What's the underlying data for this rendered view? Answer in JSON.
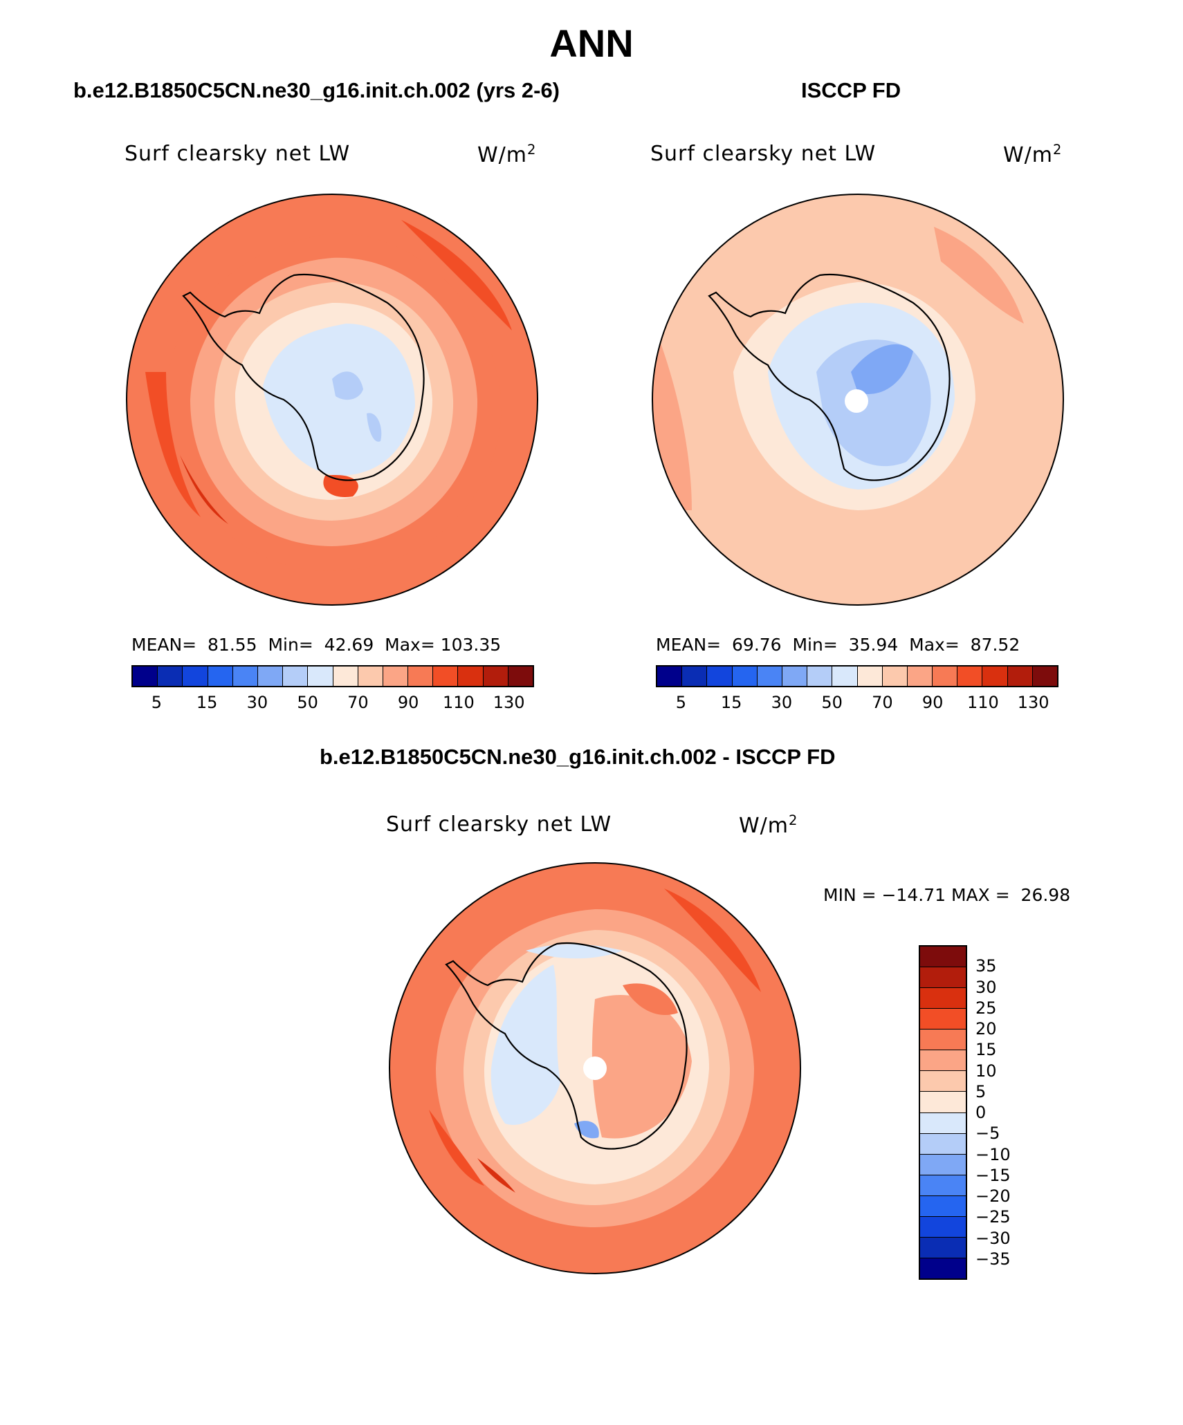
{
  "figure": {
    "title": "ANN",
    "panel_model_header": "b.e12.B1850C5CN.ne30_g16.init.ch.002 (yrs 2-6)",
    "panel_obs_header": "ISCCP FD",
    "panel_diff_header": "b.e12.B1850C5CN.ne30_g16.init.ch.002 - ISCCP FD"
  },
  "panels": {
    "model": {
      "variable": "Surf clearsky net LW",
      "units": "W/m",
      "units_sup": "2",
      "stats": "MEAN=  81.55  Min=  42.69  Max= 103.35"
    },
    "obs": {
      "variable": "Surf clearsky net LW",
      "units": "W/m",
      "units_sup": "2",
      "stats": "MEAN=  69.76  Min=  35.94  Max=  87.52"
    },
    "diff": {
      "variable": "Surf clearsky net LW",
      "units": "W/m",
      "units_sup": "2",
      "stats": "MIN = −14.71 MAX =  26.98"
    }
  },
  "colorbar_abs": {
    "colors": [
      "#00008b",
      "#0a2db4",
      "#1245dd",
      "#2565f0",
      "#4a84f5",
      "#7fa8f5",
      "#b4cdf8",
      "#d9e8fb",
      "#fde8d8",
      "#fcc9ad",
      "#fba586",
      "#f77a55",
      "#f24e26",
      "#d9300f",
      "#b21d0c",
      "#7d0c0c"
    ],
    "ticks": [
      "5",
      "15",
      "30",
      "50",
      "70",
      "90",
      "110",
      "130"
    ]
  },
  "colorbar_diff": {
    "colors": [
      "#7d0c0c",
      "#b21d0c",
      "#d9300f",
      "#f24e26",
      "#f77a55",
      "#fba586",
      "#fcc9ad",
      "#fde8d8",
      "#d9e8fb",
      "#b4cdf8",
      "#7fa8f5",
      "#4a84f5",
      "#2565f0",
      "#1245dd",
      "#0a2db4",
      "#00008b"
    ],
    "ticks": [
      "35",
      "30",
      "25",
      "20",
      "15",
      "10",
      "5",
      "0",
      "−5",
      "−10",
      "−15",
      "−20",
      "−25",
      "−30",
      "−35"
    ]
  }
}
